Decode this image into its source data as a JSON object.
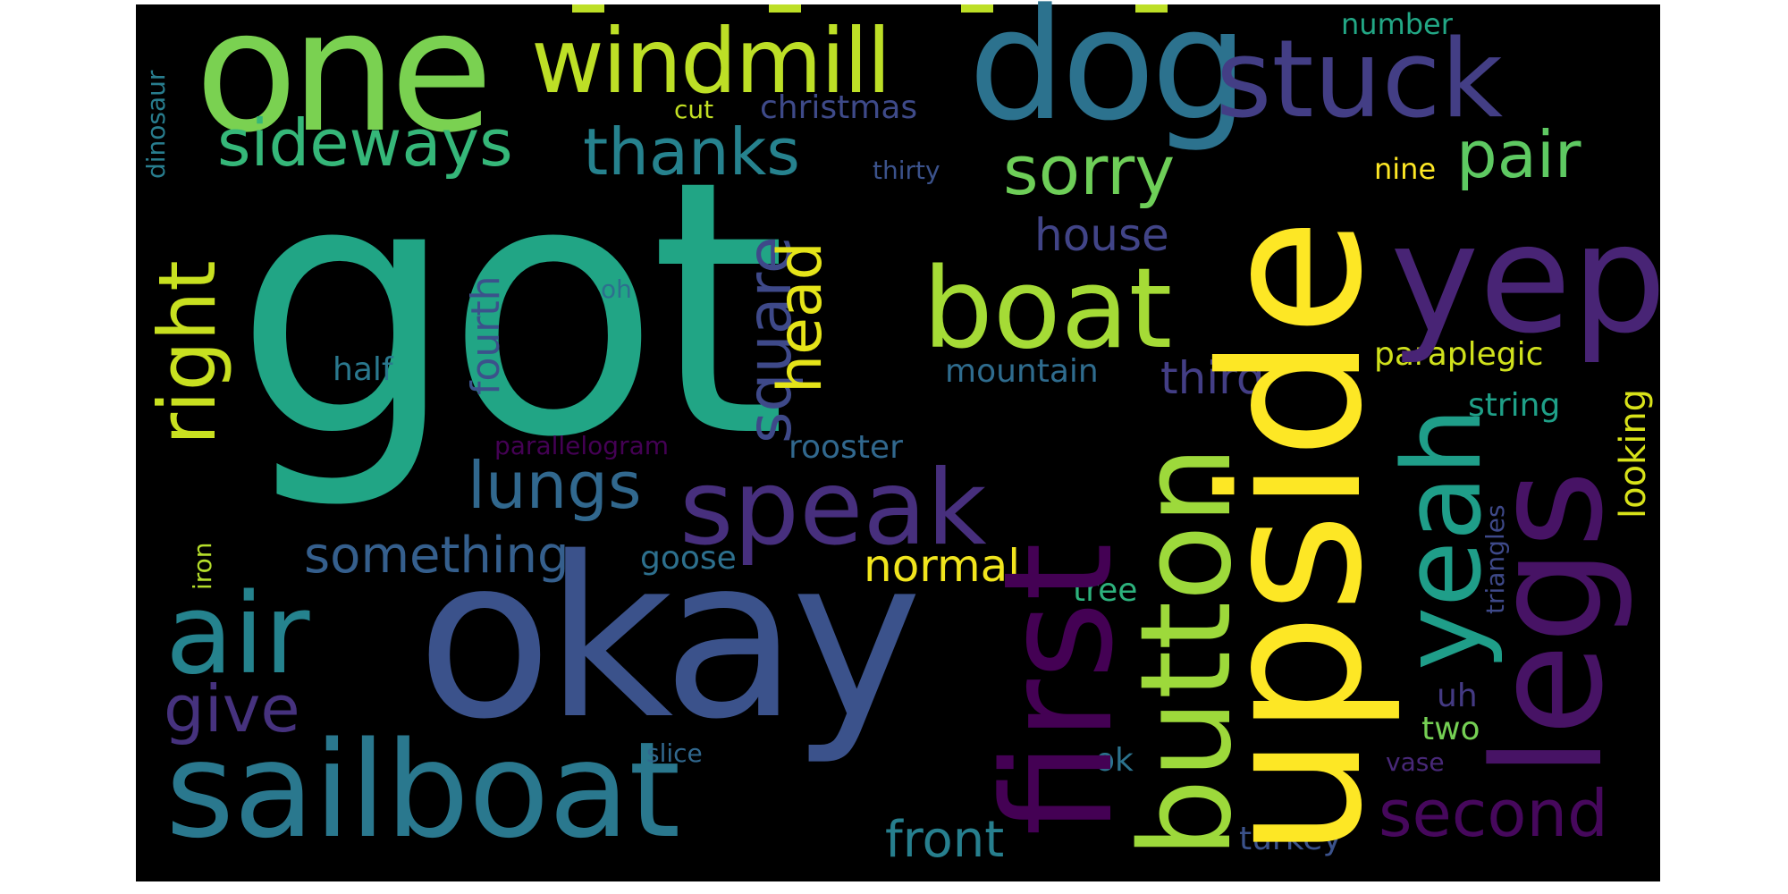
{
  "cloud": {
    "background": "#000000",
    "words": [
      {
        "text": "got",
        "color": "#21a585"
      },
      {
        "text": "okay",
        "color": "#3b528b"
      },
      {
        "text": "one",
        "color": "#7ad151"
      },
      {
        "text": "dog",
        "color": "#2c728e"
      },
      {
        "text": "stuck",
        "color": "#433e85"
      },
      {
        "text": "windmill",
        "color": "#bddf26"
      },
      {
        "text": "sailboat",
        "color": "#2a788e"
      },
      {
        "text": "upside",
        "color": "#fde725"
      },
      {
        "text": "yep",
        "color": "#482475"
      },
      {
        "text": "boat",
        "color": "#a5db36"
      },
      {
        "text": "speak",
        "color": "#472f7d"
      },
      {
        "text": "first",
        "color": "#440154"
      },
      {
        "text": "button",
        "color": "#9dd93b"
      },
      {
        "text": "legs",
        "color": "#471365"
      },
      {
        "text": "yeah",
        "color": "#1f9e89"
      },
      {
        "text": "air",
        "color": "#25838e"
      },
      {
        "text": "right",
        "color": "#c8e020"
      },
      {
        "text": "sideways",
        "color": "#35b779"
      },
      {
        "text": "thanks",
        "color": "#26828e"
      },
      {
        "text": "sorry",
        "color": "#6ece58"
      },
      {
        "text": "pair",
        "color": "#5ec962"
      },
      {
        "text": "square",
        "color": "#3e4989"
      },
      {
        "text": "head",
        "color": "#e5e419"
      },
      {
        "text": "lungs",
        "color": "#31688e"
      },
      {
        "text": "give",
        "color": "#46327e"
      },
      {
        "text": "second",
        "color": "#46085c"
      },
      {
        "text": "front",
        "color": "#277f8e"
      },
      {
        "text": "something",
        "color": "#355f8d"
      },
      {
        "text": "normal",
        "color": "#f1e51d"
      },
      {
        "text": "house",
        "color": "#414487"
      },
      {
        "text": "third",
        "color": "#433e85"
      },
      {
        "text": "fourth",
        "color": "#3b528b"
      },
      {
        "text": "looking",
        "color": "#d8e219"
      },
      {
        "text": "paraplegic",
        "color": "#d0e11c"
      },
      {
        "text": "christmas",
        "color": "#3e4a89"
      },
      {
        "text": "number",
        "color": "#22a785"
      },
      {
        "text": "nine",
        "color": "#fde725"
      },
      {
        "text": "mountain",
        "color": "#2f6c8e"
      },
      {
        "text": "half",
        "color": "#2a788e"
      },
      {
        "text": "rooster",
        "color": "#31688e"
      },
      {
        "text": "goose",
        "color": "#2d708e"
      },
      {
        "text": "string",
        "color": "#1fa088"
      },
      {
        "text": "triangles",
        "color": "#3e4989"
      },
      {
        "text": "tree",
        "color": "#2db27d"
      },
      {
        "text": "uh",
        "color": "#443a83"
      },
      {
        "text": "two",
        "color": "#75d054"
      },
      {
        "text": "turkey",
        "color": "#3b528b"
      },
      {
        "text": "ok",
        "color": "#2c738e"
      },
      {
        "text": "vase",
        "color": "#482878"
      },
      {
        "text": "slice",
        "color": "#31688e"
      },
      {
        "text": "cut",
        "color": "#c2df23"
      },
      {
        "text": "thirty",
        "color": "#3b528b"
      },
      {
        "text": "dinosaur",
        "color": "#287d8e"
      },
      {
        "text": "iron",
        "color": "#b5de2b"
      },
      {
        "text": "oh",
        "color": "#2d708e"
      },
      {
        "text": "parallelogram",
        "color": "#440154"
      }
    ]
  }
}
